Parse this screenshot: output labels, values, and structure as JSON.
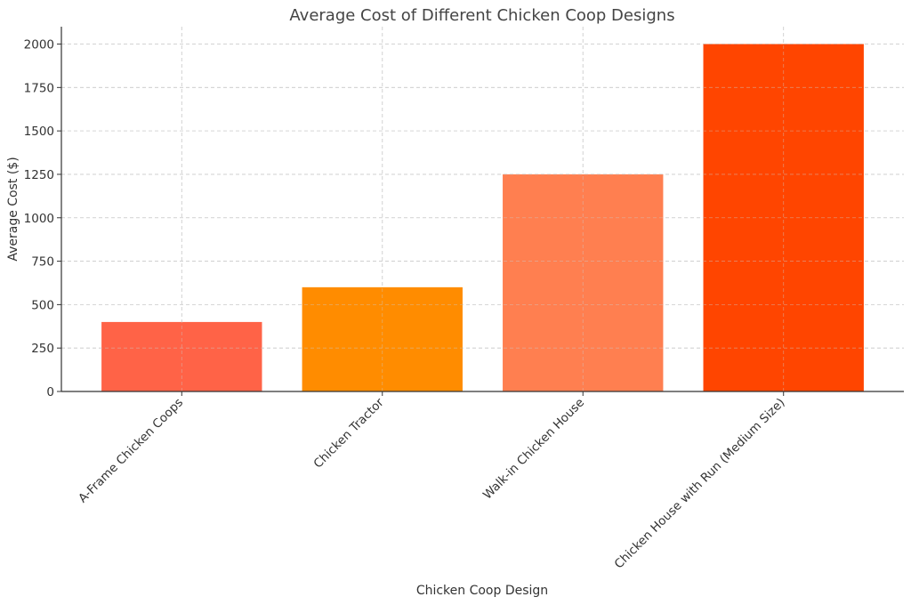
{
  "chart_data": {
    "type": "bar",
    "title": "Average Cost of Different Chicken Coop Designs",
    "xlabel": "Chicken Coop Design",
    "ylabel": "Average Cost ($)",
    "categories": [
      "A-Frame Chicken Coops",
      "Chicken Tractor",
      "Walk-in Chicken House",
      "Chicken House with Run (Medium Size)"
    ],
    "values": [
      400,
      600,
      1250,
      2000
    ],
    "colors": [
      "#ff6347",
      "#ff8c00",
      "#ff7f50",
      "#ff4500"
    ],
    "ylim": [
      0,
      2100
    ],
    "yticks": [
      0,
      250,
      500,
      750,
      1000,
      1250,
      1500,
      1750,
      2000
    ],
    "grid": true,
    "legend": "none"
  }
}
